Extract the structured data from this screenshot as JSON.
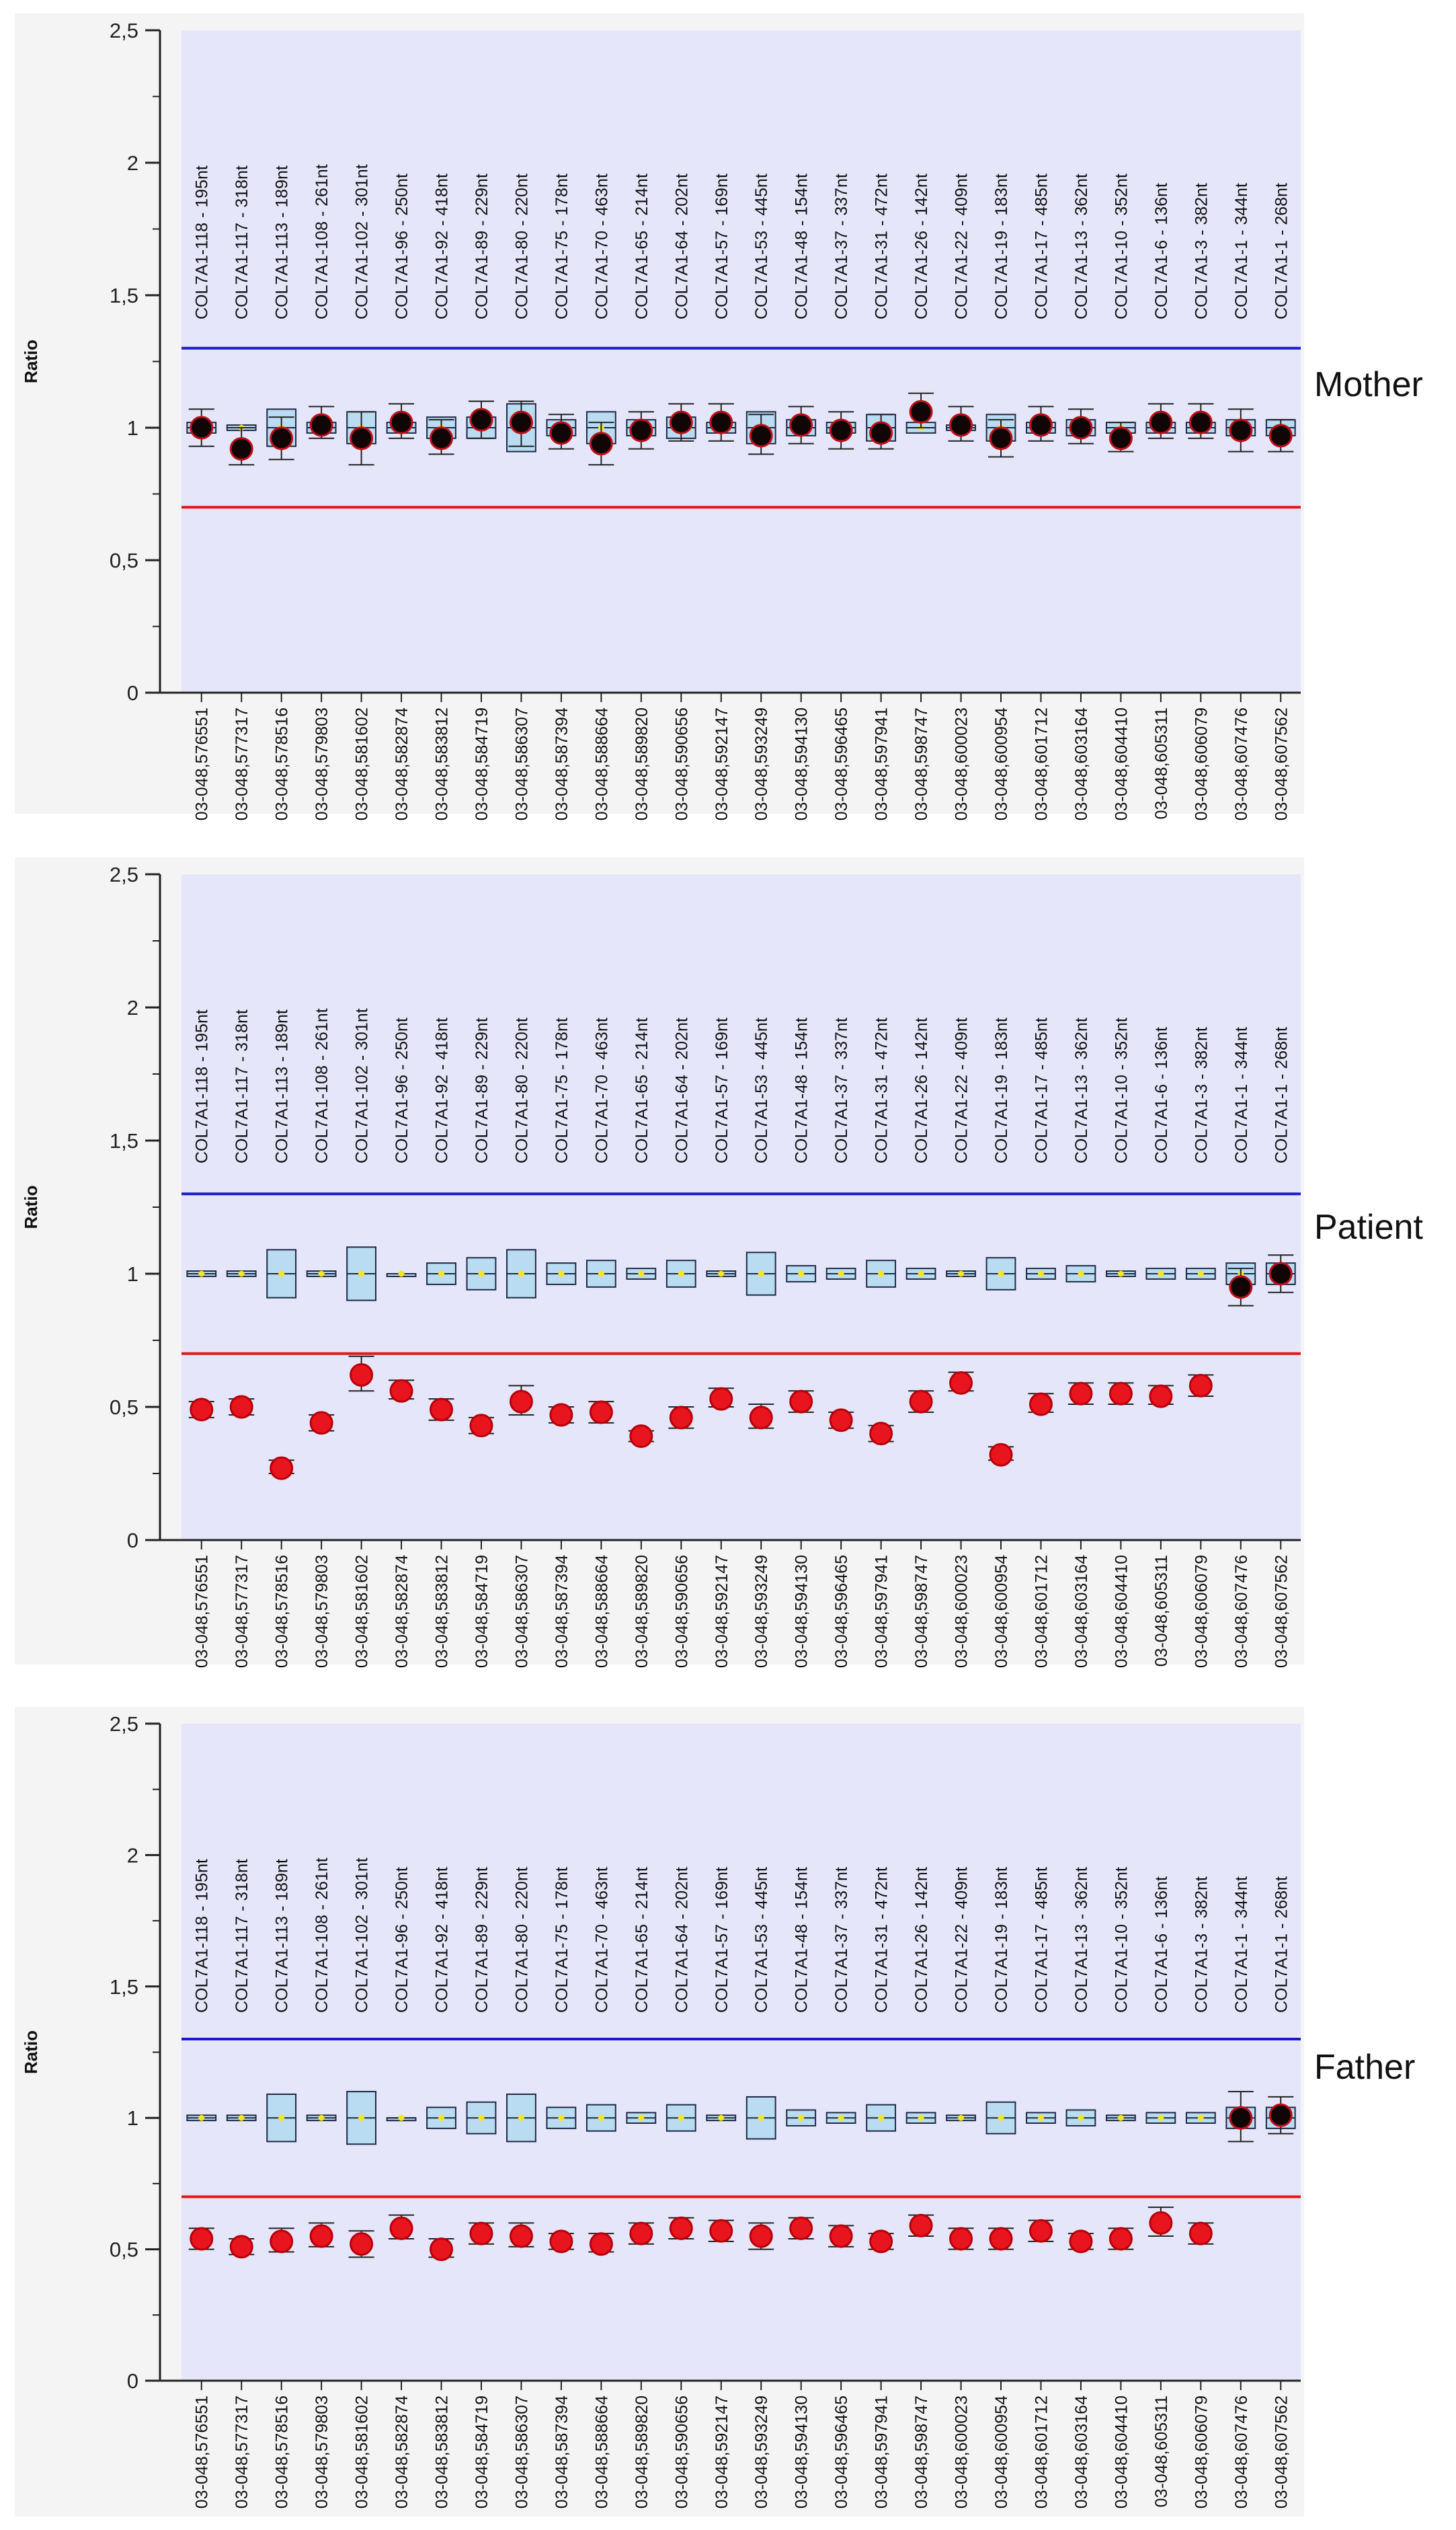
{
  "colors": {
    "plot_bg": "#e6e6fa",
    "panel_bg": "#f4f4f4",
    "upper_line": "#1a1acc",
    "lower_line": "#e01818",
    "box_fill": "#b9dcf3",
    "box_stroke": "#1e2a44",
    "dot_red": "#e8141e",
    "dot_black": "#100606",
    "median_yellow": "#f5e51c",
    "axis": "#222222"
  },
  "chart_data": [
    {
      "type": "box-dot",
      "panel": "Mother",
      "ylabel": "Ratio",
      "yticks": [
        "0",
        "0,5",
        "1",
        "1,5",
        "2",
        "2,5"
      ],
      "ylim": [
        0,
        2.5
      ],
      "upper_threshold": 1.3,
      "lower_threshold": 0.7,
      "probes": [
        "COL7A1-118 - 195nt",
        "COL7A1-117 - 318nt",
        "COL7A1-113 - 189nt",
        "COL7A1-108 - 261nt",
        "COL7A1-102 - 301nt",
        "COL7A1-96 - 250nt",
        "COL7A1-92 - 418nt",
        "COL7A1-89 - 229nt",
        "COL7A1-80 - 220nt",
        "COL7A1-75 - 178nt",
        "COL7A1-70 - 463nt",
        "COL7A1-65 - 214nt",
        "COL7A1-64 - 202nt",
        "COL7A1-57 - 169nt",
        "COL7A1-53 - 445nt",
        "COL7A1-48 - 154nt",
        "COL7A1-37 - 337nt",
        "COL7A1-31 - 472nt",
        "COL7A1-26 - 142nt",
        "COL7A1-22 - 409nt",
        "COL7A1-19 - 183nt",
        "COL7A1-17 - 485nt",
        "COL7A1-13 - 362nt",
        "COL7A1-10 - 352nt",
        "COL7A1-6 - 136nt",
        "COL7A1-3 - 382nt",
        "COL7A1-1 - 344nt",
        "COL7A1-1 - 268nt"
      ],
      "positions": [
        "03-048,576551",
        "03-048,577317",
        "03-048,578516",
        "03-048,579803",
        "03-048,581602",
        "03-048,582874",
        "03-048,583812",
        "03-048,584719",
        "03-048,586307",
        "03-048,587394",
        "03-048,588664",
        "03-048,589820",
        "03-048,590656",
        "03-048,592147",
        "03-048,593249",
        "03-048,594130",
        "03-048,596465",
        "03-048,597941",
        "03-048,598747",
        "03-048,600023",
        "03-048,600954",
        "03-048,601712",
        "03-048,603164",
        "03-048,604410",
        "03-048,605311",
        "03-048,606079",
        "03-048,607476",
        "03-048,607562"
      ],
      "box_low": [
        0.98,
        0.99,
        0.93,
        0.98,
        0.94,
        0.98,
        0.96,
        0.96,
        0.91,
        0.97,
        0.94,
        0.97,
        0.96,
        0.98,
        0.94,
        0.97,
        0.98,
        0.95,
        0.98,
        0.99,
        0.95,
        0.98,
        0.97,
        0.98,
        0.98,
        0.98,
        0.97,
        0.97
      ],
      "box_high": [
        1.02,
        1.01,
        1.07,
        1.02,
        1.06,
        1.02,
        1.04,
        1.04,
        1.09,
        1.03,
        1.06,
        1.03,
        1.04,
        1.02,
        1.06,
        1.03,
        1.02,
        1.05,
        1.02,
        1.01,
        1.05,
        1.02,
        1.03,
        1.02,
        1.02,
        1.02,
        1.03,
        1.03
      ],
      "values": [
        1.0,
        0.92,
        0.96,
        1.01,
        0.96,
        1.02,
        0.96,
        1.03,
        1.02,
        0.98,
        0.94,
        0.99,
        1.02,
        1.02,
        0.97,
        1.01,
        0.99,
        0.98,
        1.06,
        1.01,
        0.96,
        1.01,
        1.0,
        0.96,
        1.02,
        1.02,
        0.99,
        0.97
      ],
      "err_low": [
        0.93,
        0.86,
        0.88,
        0.96,
        0.86,
        0.96,
        0.9,
        0.96,
        0.93,
        0.92,
        0.86,
        0.92,
        0.95,
        0.95,
        0.9,
        0.94,
        0.92,
        0.92,
        1.0,
        0.95,
        0.89,
        0.95,
        0.94,
        0.91,
        0.96,
        0.96,
        0.91,
        0.91
      ],
      "err_high": [
        1.07,
        1.0,
        1.04,
        1.08,
        1.06,
        1.09,
        1.03,
        1.1,
        1.1,
        1.05,
        1.02,
        1.06,
        1.09,
        1.09,
        1.05,
        1.08,
        1.06,
        1.05,
        1.13,
        1.08,
        1.03,
        1.08,
        1.07,
        1.02,
        1.09,
        1.09,
        1.07,
        1.03
      ],
      "dot_color": [
        "black",
        "black",
        "black",
        "black",
        "black",
        "black",
        "black",
        "black",
        "black",
        "black",
        "black",
        "black",
        "black",
        "black",
        "black",
        "black",
        "black",
        "black",
        "black",
        "black",
        "black",
        "black",
        "black",
        "black",
        "black",
        "black",
        "black",
        "black"
      ]
    },
    {
      "type": "box-dot",
      "panel": "Patient",
      "ylabel": "Ratio",
      "yticks": [
        "0",
        "0,5",
        "1",
        "1,5",
        "2",
        "2,5"
      ],
      "ylim": [
        0,
        2.5
      ],
      "upper_threshold": 1.3,
      "lower_threshold": 0.7,
      "probes": [
        "COL7A1-118 - 195nt",
        "COL7A1-117 - 318nt",
        "COL7A1-113 - 189nt",
        "COL7A1-108 - 261nt",
        "COL7A1-102 - 301nt",
        "COL7A1-96 - 250nt",
        "COL7A1-92 - 418nt",
        "COL7A1-89 - 229nt",
        "COL7A1-80 - 220nt",
        "COL7A1-75 - 178nt",
        "COL7A1-70 - 463nt",
        "COL7A1-65 - 214nt",
        "COL7A1-64 - 202nt",
        "COL7A1-57 - 169nt",
        "COL7A1-53 - 445nt",
        "COL7A1-48 - 154nt",
        "COL7A1-37 - 337nt",
        "COL7A1-31 - 472nt",
        "COL7A1-26 - 142nt",
        "COL7A1-22 - 409nt",
        "COL7A1-19 - 183nt",
        "COL7A1-17 - 485nt",
        "COL7A1-13 - 362nt",
        "COL7A1-10 - 352nt",
        "COL7A1-6 - 136nt",
        "COL7A1-3 - 382nt",
        "COL7A1-1 - 344nt",
        "COL7A1-1 - 268nt"
      ],
      "positions": [
        "03-048,576551",
        "03-048,577317",
        "03-048,578516",
        "03-048,579803",
        "03-048,581602",
        "03-048,582874",
        "03-048,583812",
        "03-048,584719",
        "03-048,586307",
        "03-048,587394",
        "03-048,588664",
        "03-048,589820",
        "03-048,590656",
        "03-048,592147",
        "03-048,593249",
        "03-048,594130",
        "03-048,596465",
        "03-048,597941",
        "03-048,598747",
        "03-048,600023",
        "03-048,600954",
        "03-048,601712",
        "03-048,603164",
        "03-048,604410",
        "03-048,605311",
        "03-048,606079",
        "03-048,607476",
        "03-048,607562"
      ],
      "box_low": [
        0.99,
        0.99,
        0.91,
        0.99,
        0.9,
        1.0,
        0.96,
        0.94,
        0.91,
        0.96,
        0.95,
        0.98,
        0.95,
        0.99,
        0.92,
        0.97,
        0.98,
        0.95,
        0.98,
        0.99,
        0.94,
        0.98,
        0.97,
        0.99,
        0.98,
        0.98,
        0.96,
        0.96
      ],
      "box_high": [
        1.01,
        1.01,
        1.09,
        1.01,
        1.1,
        1.0,
        1.04,
        1.06,
        1.09,
        1.04,
        1.05,
        1.02,
        1.05,
        1.01,
        1.08,
        1.03,
        1.02,
        1.05,
        1.02,
        1.01,
        1.06,
        1.02,
        1.03,
        1.01,
        1.02,
        1.02,
        1.04,
        1.04
      ],
      "values": [
        0.49,
        0.5,
        0.27,
        0.44,
        0.62,
        0.56,
        0.49,
        0.43,
        0.52,
        0.47,
        0.48,
        0.39,
        0.46,
        0.53,
        0.46,
        0.52,
        0.45,
        0.4,
        0.52,
        0.59,
        0.32,
        0.51,
        0.55,
        0.55,
        0.54,
        0.58,
        0.95,
        1.0
      ],
      "err_low": [
        0.46,
        0.47,
        0.25,
        0.41,
        0.56,
        0.53,
        0.45,
        0.4,
        0.47,
        0.44,
        0.44,
        0.37,
        0.42,
        0.5,
        0.42,
        0.48,
        0.42,
        0.37,
        0.48,
        0.56,
        0.3,
        0.48,
        0.51,
        0.51,
        0.51,
        0.54,
        0.88,
        0.93
      ],
      "err_high": [
        0.52,
        0.53,
        0.3,
        0.47,
        0.69,
        0.6,
        0.53,
        0.46,
        0.58,
        0.5,
        0.52,
        0.41,
        0.5,
        0.57,
        0.51,
        0.56,
        0.48,
        0.43,
        0.56,
        0.63,
        0.35,
        0.55,
        0.59,
        0.59,
        0.58,
        0.62,
        1.02,
        1.07
      ],
      "dot_color": [
        "red",
        "red",
        "red",
        "red",
        "red",
        "red",
        "red",
        "red",
        "red",
        "red",
        "red",
        "red",
        "red",
        "red",
        "red",
        "red",
        "red",
        "red",
        "red",
        "red",
        "red",
        "red",
        "red",
        "red",
        "red",
        "red",
        "black",
        "black"
      ]
    },
    {
      "type": "box-dot",
      "panel": "Father",
      "ylabel": "Ratio",
      "yticks": [
        "0",
        "0,5",
        "1",
        "1,5",
        "2",
        "2,5"
      ],
      "ylim": [
        0,
        2.5
      ],
      "upper_threshold": 1.3,
      "lower_threshold": 0.7,
      "probes": [
        "COL7A1-118 - 195nt",
        "COL7A1-117 - 318nt",
        "COL7A1-113 - 189nt",
        "COL7A1-108 - 261nt",
        "COL7A1-102 - 301nt",
        "COL7A1-96 - 250nt",
        "COL7A1-92 - 418nt",
        "COL7A1-89 - 229nt",
        "COL7A1-80 - 220nt",
        "COL7A1-75 - 178nt",
        "COL7A1-70 - 463nt",
        "COL7A1-65 - 214nt",
        "COL7A1-64 - 202nt",
        "COL7A1-57 - 169nt",
        "COL7A1-53 - 445nt",
        "COL7A1-48 - 154nt",
        "COL7A1-37 - 337nt",
        "COL7A1-31 - 472nt",
        "COL7A1-26 - 142nt",
        "COL7A1-22 - 409nt",
        "COL7A1-19 - 183nt",
        "COL7A1-17 - 485nt",
        "COL7A1-13 - 362nt",
        "COL7A1-10 - 352nt",
        "COL7A1-6 - 136nt",
        "COL7A1-3 - 382nt",
        "COL7A1-1 - 344nt",
        "COL7A1-1 - 268nt"
      ],
      "positions": [
        "03-048,576551",
        "03-048,577317",
        "03-048,578516",
        "03-048,579803",
        "03-048,581602",
        "03-048,582874",
        "03-048,583812",
        "03-048,584719",
        "03-048,586307",
        "03-048,587394",
        "03-048,588664",
        "03-048,589820",
        "03-048,590656",
        "03-048,592147",
        "03-048,593249",
        "03-048,594130",
        "03-048,596465",
        "03-048,597941",
        "03-048,598747",
        "03-048,600023",
        "03-048,600954",
        "03-048,601712",
        "03-048,603164",
        "03-048,604410",
        "03-048,605311",
        "03-048,606079",
        "03-048,607476",
        "03-048,607562"
      ],
      "box_low": [
        0.99,
        0.99,
        0.91,
        0.99,
        0.9,
        1.0,
        0.96,
        0.94,
        0.91,
        0.96,
        0.95,
        0.98,
        0.95,
        0.99,
        0.92,
        0.97,
        0.98,
        0.95,
        0.98,
        0.99,
        0.94,
        0.98,
        0.97,
        0.99,
        0.98,
        0.98,
        0.96,
        0.96
      ],
      "box_high": [
        1.01,
        1.01,
        1.09,
        1.01,
        1.1,
        1.0,
        1.04,
        1.06,
        1.09,
        1.04,
        1.05,
        1.02,
        1.05,
        1.01,
        1.08,
        1.03,
        1.02,
        1.05,
        1.02,
        1.01,
        1.06,
        1.02,
        1.03,
        1.01,
        1.02,
        1.02,
        1.04,
        1.04
      ],
      "values": [
        0.54,
        0.51,
        0.53,
        0.55,
        0.52,
        0.58,
        0.5,
        0.56,
        0.55,
        0.53,
        0.52,
        0.56,
        0.58,
        0.57,
        0.55,
        0.58,
        0.55,
        0.53,
        0.59,
        0.54,
        0.54,
        0.57,
        0.53,
        0.54,
        0.6,
        0.56,
        1.0,
        1.01
      ],
      "err_low": [
        0.5,
        0.48,
        0.49,
        0.51,
        0.47,
        0.54,
        0.47,
        0.52,
        0.51,
        0.5,
        0.49,
        0.52,
        0.54,
        0.53,
        0.5,
        0.54,
        0.51,
        0.5,
        0.55,
        0.5,
        0.5,
        0.53,
        0.5,
        0.5,
        0.55,
        0.52,
        0.91,
        0.94
      ],
      "err_high": [
        0.58,
        0.54,
        0.58,
        0.6,
        0.57,
        0.63,
        0.54,
        0.6,
        0.6,
        0.56,
        0.56,
        0.6,
        0.62,
        0.61,
        0.6,
        0.62,
        0.59,
        0.56,
        0.63,
        0.58,
        0.58,
        0.61,
        0.56,
        0.58,
        0.66,
        0.6,
        1.1,
        1.08
      ],
      "dot_color": [
        "red",
        "red",
        "red",
        "red",
        "red",
        "red",
        "red",
        "red",
        "red",
        "red",
        "red",
        "red",
        "red",
        "red",
        "red",
        "red",
        "red",
        "red",
        "red",
        "red",
        "red",
        "red",
        "red",
        "red",
        "red",
        "red",
        "black",
        "black"
      ]
    }
  ]
}
